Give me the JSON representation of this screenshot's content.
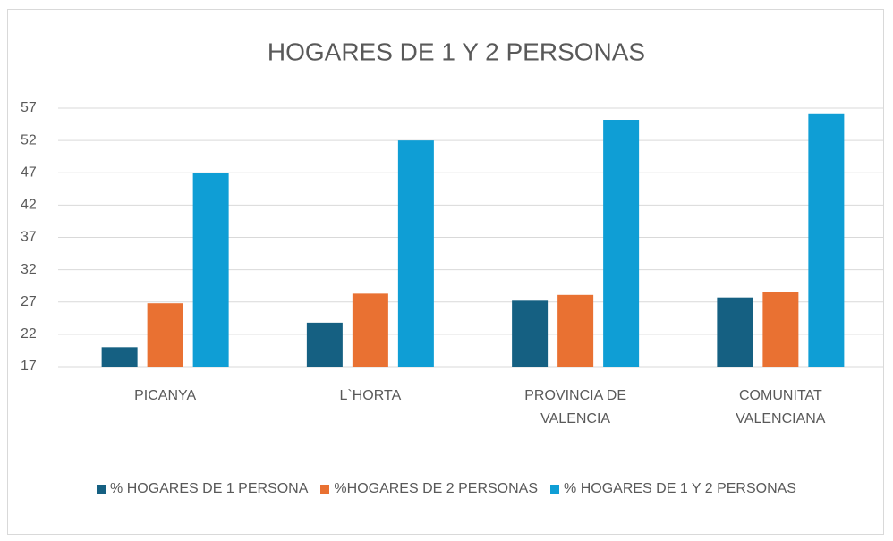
{
  "chart_data": {
    "type": "bar",
    "title": "HOGARES DE 1 Y 2 PERSONAS",
    "categories": [
      "PICANYA",
      "L`HORTA",
      "PROVINCIA DE VALENCIA",
      "COMUNITAT VALENCIANA"
    ],
    "series": [
      {
        "name": "% HOGARES DE 1 PERSONA",
        "color": "#156082",
        "values": [
          20.0,
          23.8,
          27.2,
          27.7
        ]
      },
      {
        "name": "%HOGARES DE 2 PERSONAS",
        "color": "#e97132",
        "values": [
          26.8,
          28.3,
          28.1,
          28.6
        ]
      },
      {
        "name": "% HOGARES DE 1 Y 2 PERSONAS",
        "color": "#0f9ed5",
        "values": [
          46.9,
          52.0,
          55.2,
          56.2
        ]
      }
    ],
    "ylim": [
      17,
      57
    ],
    "yticks": [
      17,
      22,
      27,
      32,
      37,
      42,
      47,
      52,
      57
    ],
    "grid": true,
    "legend": "bottom"
  }
}
